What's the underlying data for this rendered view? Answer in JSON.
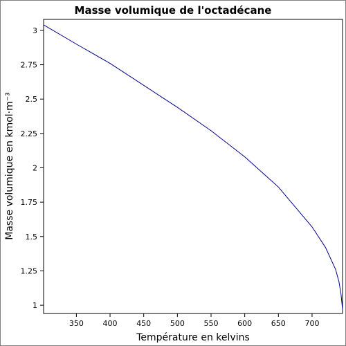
{
  "chart_data": {
    "type": "line",
    "title": "Masse volumique de l'octadécane",
    "xlabel": "Température en kelvins",
    "ylabel": "Masse volumique en kmol·m⁻³",
    "xlim": [
      301.31,
      745.26
    ],
    "ylim": [
      0.94,
      3.08
    ],
    "xticks": [
      350,
      400,
      450,
      500,
      550,
      600,
      650,
      700
    ],
    "xtick_labels": [
      "350",
      "400",
      "450",
      "500",
      "550",
      "600",
      "650",
      "700"
    ],
    "yticks": [
      1,
      1.25,
      1.5,
      1.75,
      2,
      2.25,
      2.5,
      2.75,
      3
    ],
    "ytick_labels": [
      "1",
      "1.25",
      "1.5",
      "1.75",
      "2",
      "2.25",
      "2.5",
      "2.75",
      "3"
    ],
    "grid": false,
    "line_color": "#00008b",
    "series": [
      {
        "x": [
          301.31,
          350,
          400,
          450,
          500,
          550,
          600,
          650,
          700,
          720,
          735,
          740,
          743,
          745.26
        ],
        "y": [
          3.04,
          2.9,
          2.76,
          2.6,
          2.44,
          2.27,
          2.08,
          1.86,
          1.57,
          1.42,
          1.26,
          1.17,
          1.08,
          0.97
        ]
      }
    ]
  }
}
